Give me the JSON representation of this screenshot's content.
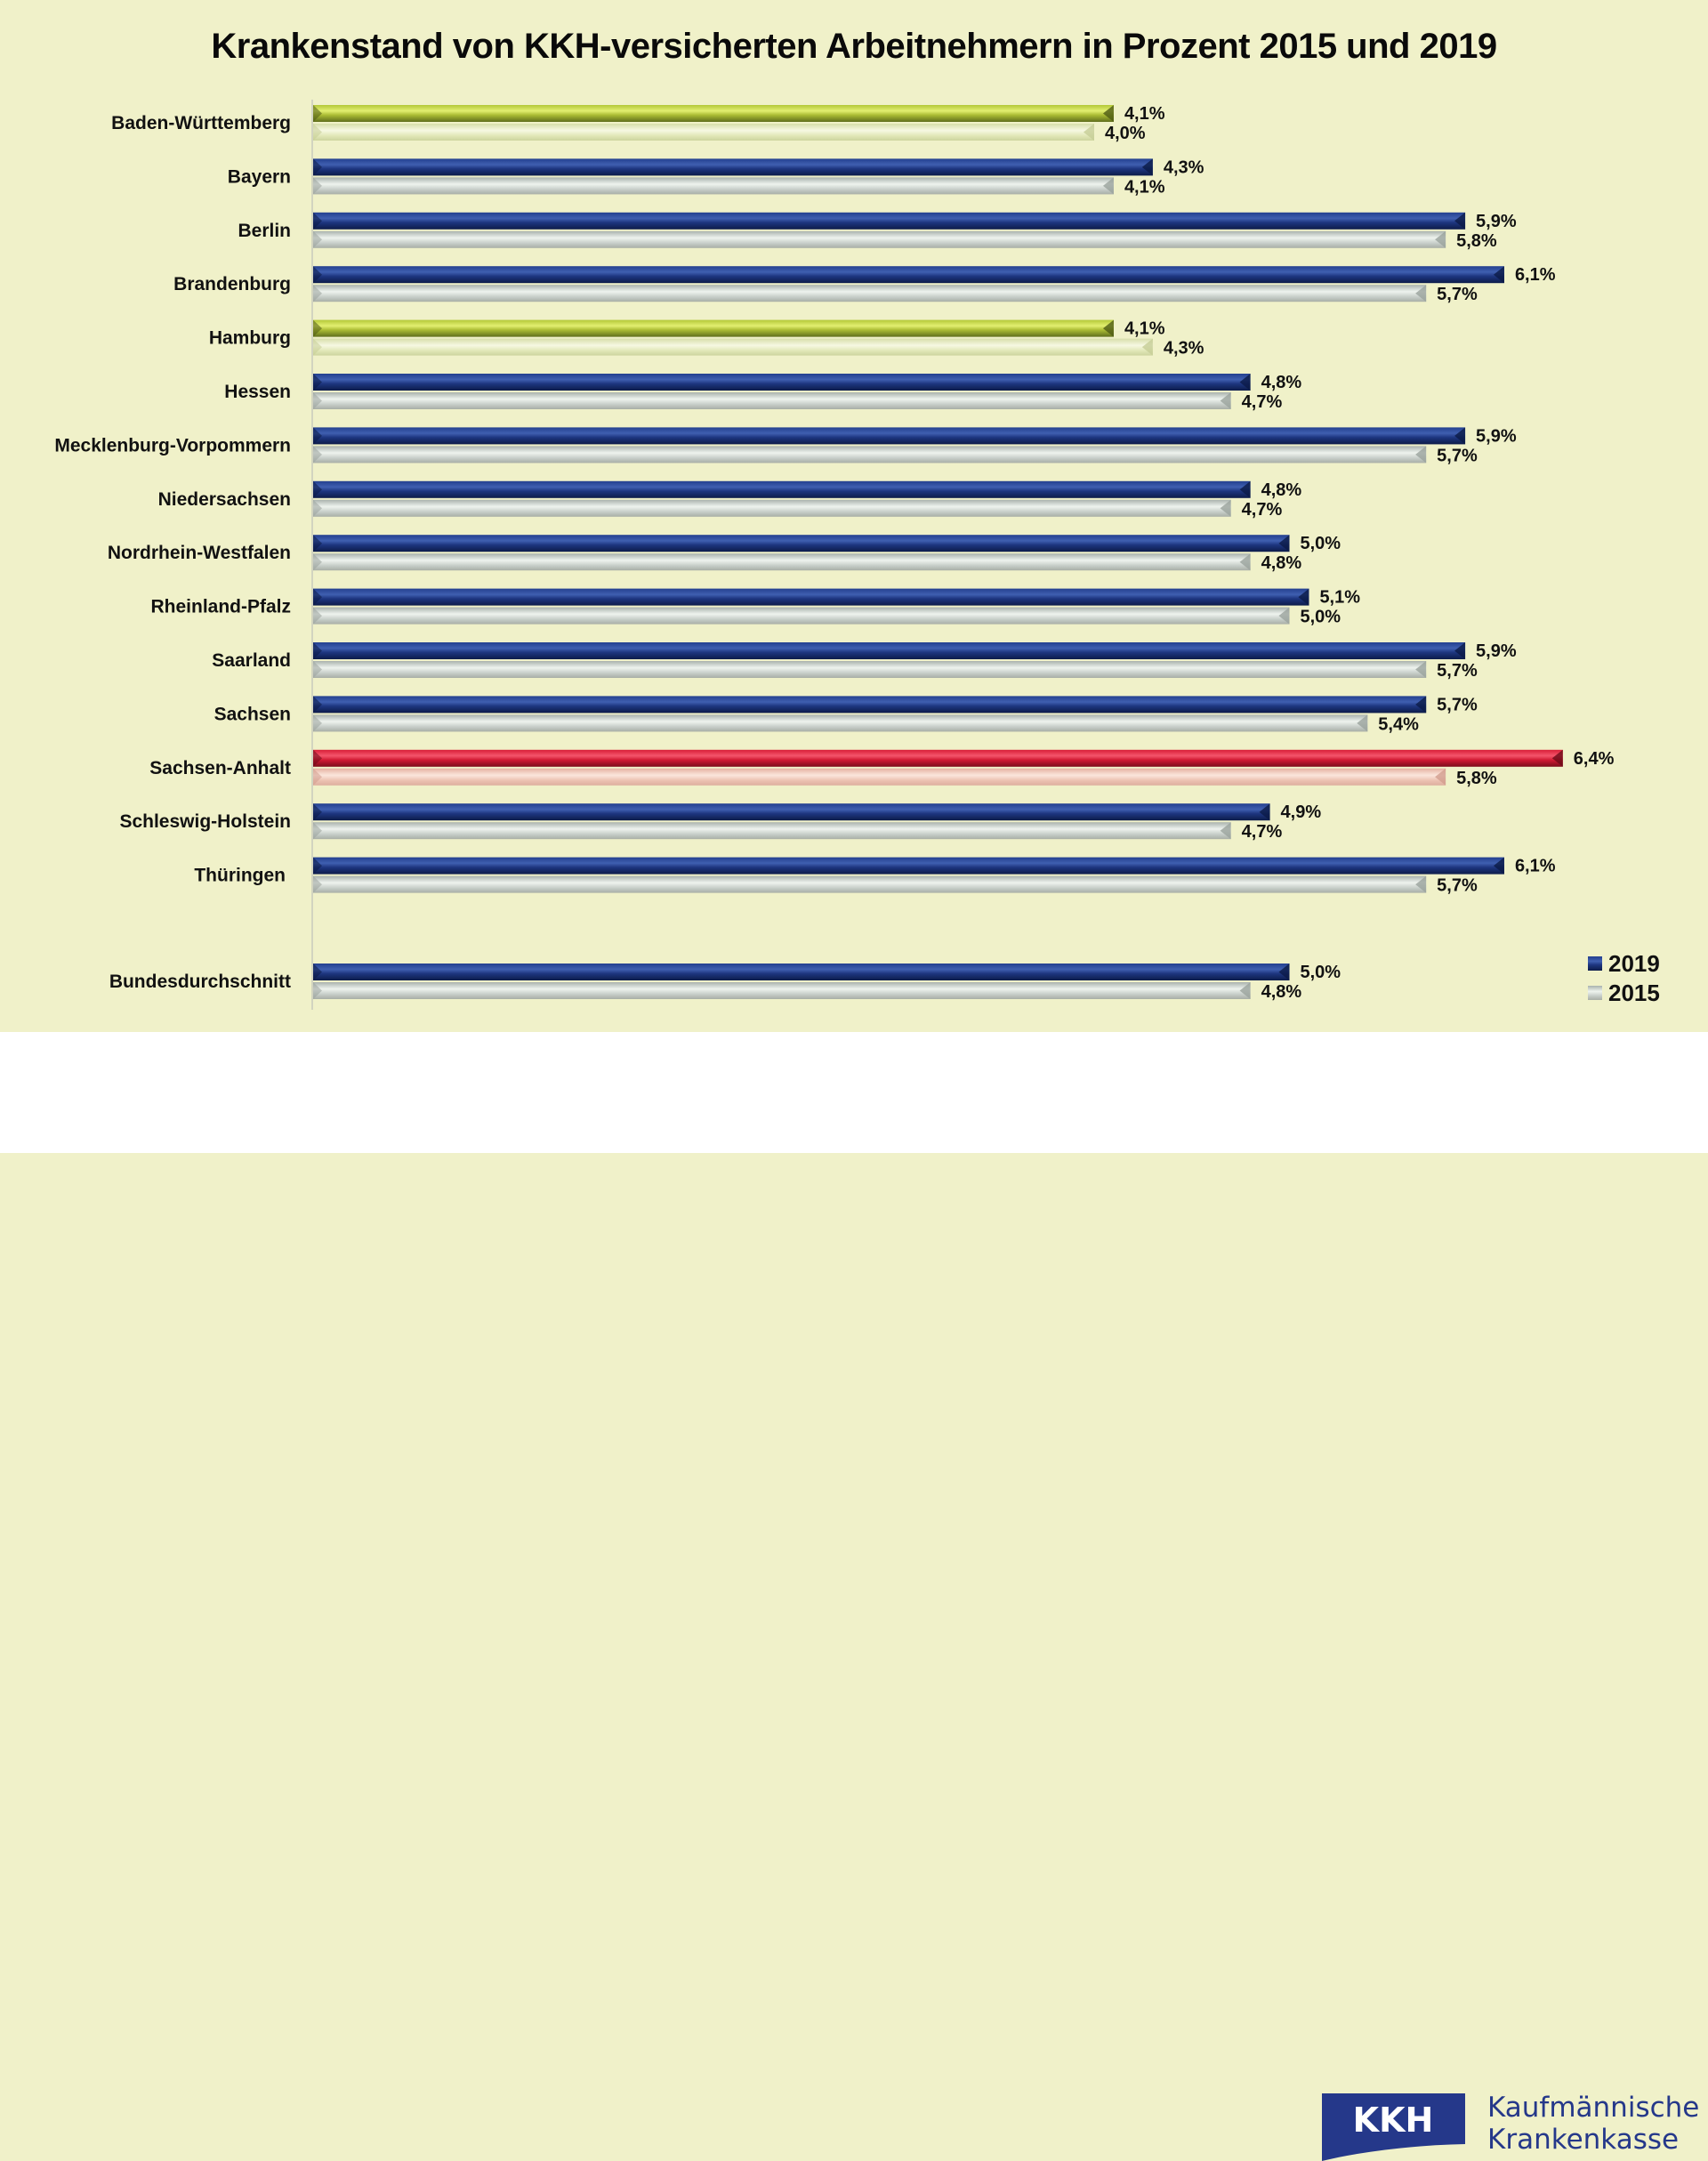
{
  "chart_data": {
    "type": "bar",
    "orientation": "horizontal",
    "title": "Krankenstand von KKH-versicherten Arbeitnehmern in Prozent 2015 und 2019",
    "xlabel": "",
    "ylabel": "",
    "xlim": [
      0,
      6.4
    ],
    "grid": false,
    "legend_position": "bottom-right",
    "categories": [
      "Baden-Württemberg",
      "Bayern",
      "Berlin",
      "Brandenburg",
      "Hamburg",
      "Hessen",
      "Mecklenburg-Vorpommern",
      "Niedersachsen",
      "Nordrhein-Westfalen",
      "Rheinland-Pfalz",
      "Saarland",
      "Sachsen",
      "Sachsen-Anhalt",
      "Schleswig-Holstein",
      "Thüringen",
      "Bundesdurchschnitt"
    ],
    "series": [
      {
        "name": "2019",
        "values": [
          4.1,
          4.3,
          5.9,
          6.1,
          4.1,
          4.8,
          5.9,
          4.8,
          5.0,
          5.1,
          5.9,
          5.7,
          6.4,
          4.9,
          6.1,
          5.0
        ],
        "labels": [
          "4,1%",
          "4,3%",
          "5,9%",
          "6,1%",
          "4,1%",
          "4,8%",
          "5,9%",
          "4,8%",
          "5,0%",
          "5,1%",
          "5,9%",
          "5,7%",
          "6,4%",
          "4,9%",
          "6,1%",
          "5,0%"
        ]
      },
      {
        "name": "2015",
        "values": [
          4.0,
          4.1,
          5.8,
          5.7,
          4.3,
          4.7,
          5.7,
          4.7,
          4.8,
          5.0,
          5.7,
          5.4,
          5.8,
          4.7,
          5.7,
          4.8
        ],
        "labels": [
          "4,0%",
          "4,1%",
          "5,8%",
          "5,7%",
          "4,3%",
          "4,7%",
          "5,7%",
          "4,7%",
          "4,8%",
          "5,0%",
          "5,7%",
          "5,4%",
          "5,8%",
          "4,7%",
          "5,7%",
          "4,8%"
        ]
      }
    ],
    "highlights": {
      "lowest": [
        "Baden-Württemberg",
        "Hamburg"
      ],
      "highest": [
        "Sachsen-Anhalt"
      ]
    },
    "colors": {
      "2019_default": "#1e3a8a",
      "2015_default": "#c5cbc4",
      "2019_lowest": "#b8cc3a",
      "2015_lowest": "#e4e9b8",
      "2019_highest": "#e0213a",
      "2015_highest": "#efbfae",
      "background": "#f0f1c9"
    }
  },
  "legend": {
    "items": [
      {
        "label": "2019",
        "color": "#1e3a8a"
      },
      {
        "label": "2015",
        "color": "#c5cbc4"
      }
    ]
  },
  "logo": {
    "mark_text": "KKH",
    "line1": "Kaufmännische",
    "line2": "Krankenkasse",
    "color": "#25388a"
  }
}
